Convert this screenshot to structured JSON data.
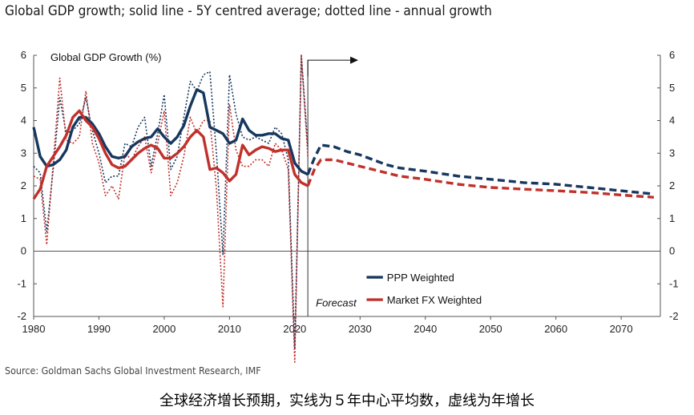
{
  "header": {
    "title": "Global GDP growth; solid line - 5Y centred average; dotted line - annual growth"
  },
  "footer": {
    "source": "Source: Goldman Sachs Global Investment Research, IMF",
    "caption": "全球经济增长预期，实线为５年中心平均数，虚线为年增长"
  },
  "colors": {
    "ppp": "#17375e",
    "market_fx": "#c0312b",
    "axis": "#555555"
  },
  "chart_data": {
    "type": "line",
    "title": "Global GDP Growth (%)",
    "xlabel": "",
    "ylabel": "Global GDP Growth (%)",
    "xlim": [
      1980,
      2076
    ],
    "ylim": [
      -2,
      6
    ],
    "x_ticks": [
      "1980",
      "1990",
      "2000",
      "2010",
      "2020",
      "2030",
      "2040",
      "2050",
      "2060",
      "2070"
    ],
    "y_ticks": [
      "-2",
      "-1",
      "0",
      "1",
      "2",
      "3",
      "4",
      "5",
      "6"
    ],
    "legend_position": "bottom-right",
    "annotations": {
      "forecast_label": "Forecast",
      "forecast_year": 2022
    },
    "series": [
      {
        "name": "PPP Weighted",
        "kind": "5y-average",
        "style": "solid",
        "color": "#17375e",
        "points": [
          [
            1980,
            3.8
          ],
          [
            1981,
            2.9
          ],
          [
            1982,
            2.6
          ],
          [
            1983,
            2.65
          ],
          [
            1984,
            2.8
          ],
          [
            1985,
            3.1
          ],
          [
            1986,
            3.8
          ],
          [
            1987,
            4.1
          ],
          [
            1988,
            4.1
          ],
          [
            1989,
            3.9
          ],
          [
            1990,
            3.6
          ],
          [
            1991,
            3.2
          ],
          [
            1992,
            2.9
          ],
          [
            1993,
            2.85
          ],
          [
            1994,
            2.9
          ],
          [
            1995,
            3.2
          ],
          [
            1996,
            3.35
          ],
          [
            1997,
            3.45
          ],
          [
            1998,
            3.5
          ],
          [
            1999,
            3.75
          ],
          [
            2000,
            3.5
          ],
          [
            2001,
            3.3
          ],
          [
            2002,
            3.5
          ],
          [
            2003,
            3.85
          ],
          [
            2004,
            4.45
          ],
          [
            2005,
            4.95
          ],
          [
            2006,
            4.85
          ],
          [
            2007,
            3.8
          ],
          [
            2008,
            3.7
          ],
          [
            2009,
            3.6
          ],
          [
            2010,
            3.3
          ],
          [
            2011,
            3.4
          ],
          [
            2012,
            4.05
          ],
          [
            2013,
            3.7
          ],
          [
            2014,
            3.55
          ],
          [
            2015,
            3.55
          ],
          [
            2016,
            3.6
          ],
          [
            2017,
            3.6
          ],
          [
            2018,
            3.45
          ],
          [
            2019,
            3.4
          ],
          [
            2020,
            2.7
          ],
          [
            2021,
            2.45
          ],
          [
            2022,
            2.35
          ]
        ]
      },
      {
        "name": "PPP Weighted",
        "kind": "annual",
        "style": "dotted",
        "color": "#17375e",
        "points": [
          [
            1980,
            2.6
          ],
          [
            1981,
            2.4
          ],
          [
            1982,
            0.6
          ],
          [
            1983,
            2.5
          ],
          [
            1984,
            4.7
          ],
          [
            1985,
            3.6
          ],
          [
            1986,
            3.7
          ],
          [
            1987,
            3.9
          ],
          [
            1988,
            4.7
          ],
          [
            1989,
            3.7
          ],
          [
            1990,
            3.0
          ],
          [
            1991,
            2.1
          ],
          [
            1992,
            2.3
          ],
          [
            1993,
            2.3
          ],
          [
            1994,
            3.3
          ],
          [
            1995,
            3.2
          ],
          [
            1996,
            3.8
          ],
          [
            1997,
            4.1
          ],
          [
            1998,
            2.6
          ],
          [
            1999,
            3.6
          ],
          [
            2000,
            4.8
          ],
          [
            2001,
            2.5
          ],
          [
            2002,
            2.9
          ],
          [
            2003,
            4.1
          ],
          [
            2004,
            5.2
          ],
          [
            2005,
            4.9
          ],
          [
            2006,
            5.4
          ],
          [
            2007,
            5.5
          ],
          [
            2008,
            3.0
          ],
          [
            2009,
            -0.1
          ],
          [
            2010,
            5.4
          ],
          [
            2011,
            4.2
          ],
          [
            2012,
            3.5
          ],
          [
            2013,
            3.4
          ],
          [
            2014,
            3.5
          ],
          [
            2015,
            3.4
          ],
          [
            2016,
            3.3
          ],
          [
            2017,
            3.8
          ],
          [
            2018,
            3.6
          ],
          [
            2019,
            2.8
          ],
          [
            2020,
            -3.0
          ],
          [
            2021,
            6.0
          ],
          [
            2022,
            3.2
          ]
        ]
      },
      {
        "name": "Market FX Weighted",
        "kind": "5y-average",
        "style": "solid",
        "color": "#c0312b",
        "points": [
          [
            1980,
            1.6
          ],
          [
            1981,
            1.9
          ],
          [
            1982,
            2.6
          ],
          [
            1983,
            2.9
          ],
          [
            1984,
            3.2
          ],
          [
            1985,
            3.55
          ],
          [
            1986,
            4.1
          ],
          [
            1987,
            4.3
          ],
          [
            1988,
            4.0
          ],
          [
            1989,
            3.8
          ],
          [
            1990,
            3.45
          ],
          [
            1991,
            3.0
          ],
          [
            1992,
            2.65
          ],
          [
            1993,
            2.55
          ],
          [
            1994,
            2.6
          ],
          [
            1995,
            2.8
          ],
          [
            1996,
            3.0
          ],
          [
            1997,
            3.15
          ],
          [
            1998,
            3.25
          ],
          [
            1999,
            3.15
          ],
          [
            2000,
            2.85
          ],
          [
            2001,
            2.85
          ],
          [
            2002,
            3.0
          ],
          [
            2003,
            3.2
          ],
          [
            2004,
            3.5
          ],
          [
            2005,
            3.7
          ],
          [
            2006,
            3.5
          ],
          [
            2007,
            2.5
          ],
          [
            2008,
            2.55
          ],
          [
            2009,
            2.4
          ],
          [
            2010,
            2.15
          ],
          [
            2011,
            2.35
          ],
          [
            2012,
            3.25
          ],
          [
            2013,
            2.95
          ],
          [
            2014,
            3.1
          ],
          [
            2015,
            3.2
          ],
          [
            2016,
            3.15
          ],
          [
            2017,
            3.05
          ],
          [
            2018,
            3.1
          ],
          [
            2019,
            3.1
          ],
          [
            2020,
            2.35
          ],
          [
            2021,
            2.1
          ],
          [
            2022,
            2.0
          ]
        ]
      },
      {
        "name": "Market FX Weighted",
        "kind": "annual",
        "style": "dotted",
        "color": "#c0312b",
        "points": [
          [
            1980,
            2.3
          ],
          [
            1981,
            2.2
          ],
          [
            1982,
            0.2
          ],
          [
            1983,
            2.7
          ],
          [
            1984,
            5.3
          ],
          [
            1985,
            3.4
          ],
          [
            1986,
            3.3
          ],
          [
            1987,
            3.5
          ],
          [
            1988,
            4.9
          ],
          [
            1989,
            3.3
          ],
          [
            1990,
            2.7
          ],
          [
            1991,
            1.7
          ],
          [
            1992,
            2.0
          ],
          [
            1993,
            1.6
          ],
          [
            1994,
            3.0
          ],
          [
            1995,
            2.8
          ],
          [
            1996,
            3.2
          ],
          [
            1997,
            3.5
          ],
          [
            1998,
            2.4
          ],
          [
            1999,
            3.3
          ],
          [
            2000,
            4.3
          ],
          [
            2001,
            1.7
          ],
          [
            2002,
            2.1
          ],
          [
            2003,
            2.9
          ],
          [
            2004,
            4.1
          ],
          [
            2005,
            3.6
          ],
          [
            2006,
            4.0
          ],
          [
            2007,
            4.0
          ],
          [
            2008,
            1.9
          ],
          [
            2009,
            -1.7
          ],
          [
            2010,
            4.5
          ],
          [
            2011,
            3.1
          ],
          [
            2012,
            2.6
          ],
          [
            2013,
            2.6
          ],
          [
            2014,
            2.8
          ],
          [
            2015,
            2.8
          ],
          [
            2016,
            2.6
          ],
          [
            2017,
            3.3
          ],
          [
            2018,
            3.1
          ],
          [
            2019,
            2.5
          ],
          [
            2020,
            -3.4
          ],
          [
            2021,
            6.0
          ],
          [
            2022,
            2.9
          ]
        ]
      },
      {
        "name": "PPP Weighted",
        "kind": "forecast",
        "style": "dashed",
        "color": "#17375e",
        "points": [
          [
            2022,
            2.35
          ],
          [
            2023,
            2.85
          ],
          [
            2024,
            3.25
          ],
          [
            2026,
            3.2
          ],
          [
            2028,
            3.05
          ],
          [
            2030,
            2.95
          ],
          [
            2032,
            2.8
          ],
          [
            2034,
            2.65
          ],
          [
            2036,
            2.55
          ],
          [
            2040,
            2.45
          ],
          [
            2045,
            2.3
          ],
          [
            2050,
            2.2
          ],
          [
            2055,
            2.1
          ],
          [
            2060,
            2.05
          ],
          [
            2065,
            1.95
          ],
          [
            2070,
            1.85
          ],
          [
            2075,
            1.75
          ]
        ]
      },
      {
        "name": "Market FX Weighted",
        "kind": "forecast",
        "style": "dashed",
        "color": "#c0312b",
        "points": [
          [
            2022,
            2.0
          ],
          [
            2023,
            2.5
          ],
          [
            2024,
            2.8
          ],
          [
            2026,
            2.8
          ],
          [
            2028,
            2.7
          ],
          [
            2030,
            2.6
          ],
          [
            2032,
            2.5
          ],
          [
            2034,
            2.4
          ],
          [
            2036,
            2.3
          ],
          [
            2040,
            2.2
          ],
          [
            2045,
            2.05
          ],
          [
            2050,
            1.95
          ],
          [
            2055,
            1.9
          ],
          [
            2060,
            1.85
          ],
          [
            2065,
            1.8
          ],
          [
            2070,
            1.72
          ],
          [
            2075,
            1.65
          ]
        ]
      }
    ]
  }
}
